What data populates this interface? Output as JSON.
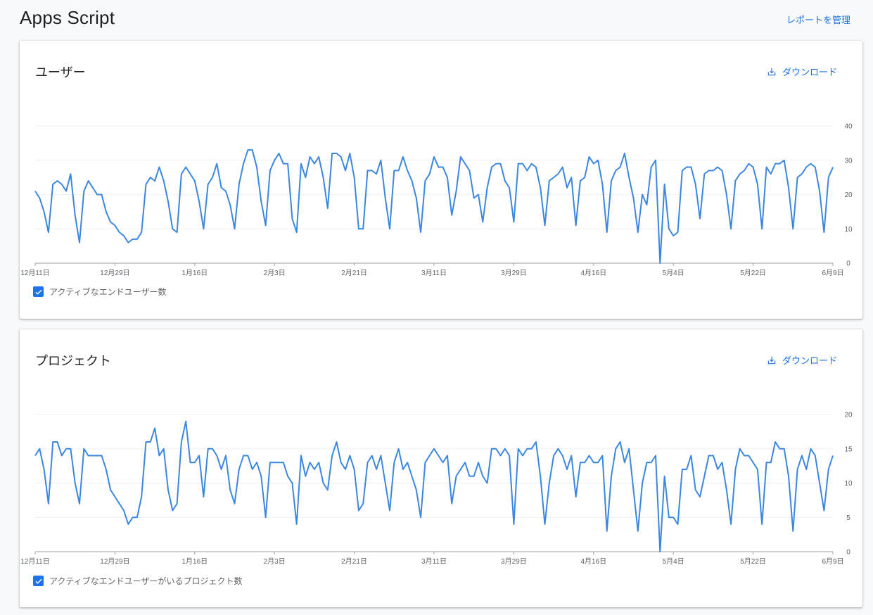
{
  "header": {
    "title": "Apps Script",
    "manage_reports": "レポートを管理"
  },
  "colors": {
    "accent": "#1a73e8",
    "series": "#3b87e0",
    "grid": "#eceff1"
  },
  "cards": [
    {
      "title": "ユーザー",
      "download_label": "ダウンロード",
      "legend_label": "アクティブなエンドユーザー数"
    },
    {
      "title": "プロジェクト",
      "download_label": "ダウンロード",
      "legend_label": "アクティブなエンドユーザーがいるプロジェクト数"
    }
  ],
  "chart_data": [
    {
      "type": "line",
      "x_tick_labels": [
        "12月11日",
        "12月29日",
        "1月16日",
        "2月3日",
        "2月21日",
        "3月11日",
        "3月29日",
        "4月16日",
        "5月4日",
        "5月22日",
        "6月9日"
      ],
      "y_ticks": [
        0,
        10,
        20,
        30,
        40
      ],
      "ylim": [
        0,
        40
      ],
      "grid": true,
      "legend_position": "bottom-left",
      "series": [
        {
          "name": "アクティブなエンドユーザー数",
          "values": [
            21,
            19,
            15,
            9,
            23,
            24,
            23,
            21,
            26,
            14,
            6,
            21,
            24,
            22,
            20,
            20,
            15,
            12,
            11,
            9,
            8,
            6,
            7,
            7,
            9,
            23,
            25,
            24,
            28,
            24,
            18,
            10,
            9,
            26,
            28,
            26,
            24,
            18,
            10,
            23,
            25,
            29,
            22,
            21,
            17,
            10,
            23,
            29,
            33,
            33,
            28,
            18,
            11,
            27,
            30,
            32,
            29,
            29,
            13,
            9,
            29,
            25,
            31,
            29,
            31,
            25,
            16,
            32,
            32,
            31,
            27,
            32,
            25,
            10,
            10,
            27,
            27,
            26,
            30,
            19,
            10,
            27,
            27,
            31,
            27,
            24,
            19,
            9,
            24,
            26,
            31,
            28,
            28,
            25,
            14,
            21,
            31,
            29,
            27,
            19,
            20,
            12,
            22,
            28,
            29,
            29,
            24,
            22,
            12,
            29,
            29,
            27,
            29,
            28,
            22,
            11,
            24,
            25,
            26,
            28,
            22,
            25,
            11,
            24,
            25,
            31,
            29,
            30,
            23,
            9,
            24,
            27,
            28,
            32,
            25,
            19,
            9,
            20,
            17,
            28,
            30,
            0,
            23,
            10,
            8,
            9,
            27,
            28,
            28,
            23,
            13,
            26,
            27,
            27,
            28,
            27,
            20,
            10,
            24,
            26,
            27,
            29,
            28,
            23,
            10,
            28,
            26,
            29,
            29,
            30,
            22,
            10,
            25,
            26,
            28,
            29,
            28,
            21,
            9,
            25,
            28
          ]
        }
      ]
    },
    {
      "type": "line",
      "x_tick_labels": [
        "12月11日",
        "12月29日",
        "1月16日",
        "2月3日",
        "2月21日",
        "3月11日",
        "3月29日",
        "4月16日",
        "5月4日",
        "5月22日",
        "6月9日"
      ],
      "y_ticks": [
        0,
        5,
        10,
        15,
        20
      ],
      "ylim": [
        0,
        20
      ],
      "grid": true,
      "legend_position": "bottom-left",
      "series": [
        {
          "name": "アクティブなエンドユーザーがいるプロジェクト数",
          "values": [
            14,
            15,
            12,
            7,
            16,
            16,
            14,
            15,
            15,
            10,
            7,
            15,
            14,
            14,
            14,
            14,
            12,
            9,
            8,
            7,
            6,
            4,
            5,
            5,
            8,
            16,
            16,
            18,
            14,
            15,
            9,
            6,
            7,
            16,
            19,
            13,
            13,
            14,
            8,
            15,
            15,
            14,
            12,
            14,
            9,
            7,
            12,
            14,
            14,
            12,
            13,
            11,
            5,
            13,
            13,
            13,
            13,
            11,
            10,
            4,
            14,
            11,
            13,
            12,
            13,
            10,
            9,
            14,
            16,
            13,
            12,
            14,
            12,
            6,
            7,
            13,
            14,
            12,
            14,
            10,
            6,
            13,
            15,
            12,
            13,
            11,
            9,
            5,
            13,
            14,
            15,
            14,
            13,
            14,
            7,
            11,
            12,
            13,
            11,
            11,
            13,
            11,
            10,
            15,
            15,
            14,
            15,
            14,
            4,
            15,
            14,
            15,
            15,
            16,
            11,
            4,
            10,
            14,
            15,
            14,
            12,
            14,
            8,
            13,
            13,
            14,
            13,
            13,
            14,
            3,
            11,
            15,
            16,
            13,
            15,
            9,
            3,
            10,
            13,
            13,
            14,
            0,
            11,
            5,
            5,
            4,
            12,
            12,
            14,
            9,
            8,
            11,
            14,
            14,
            12,
            13,
            9,
            4,
            12,
            15,
            14,
            14,
            13,
            12,
            4,
            13,
            13,
            16,
            15,
            15,
            11,
            3,
            12,
            14,
            12,
            15,
            14,
            10,
            6,
            12,
            14
          ]
        }
      ]
    }
  ]
}
